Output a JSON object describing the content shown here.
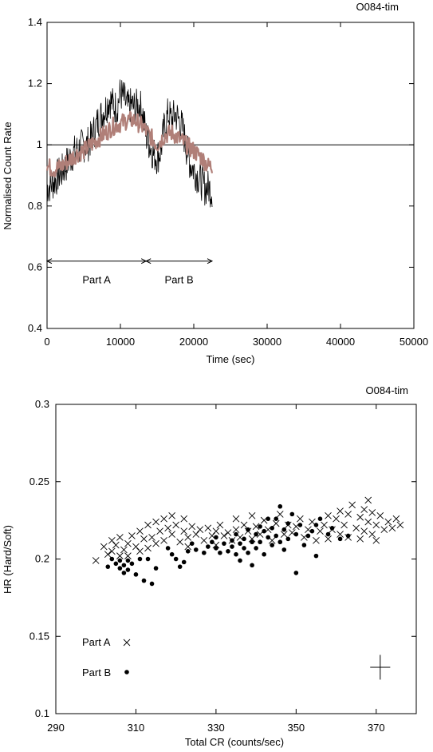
{
  "chart_data": [
    {
      "type": "line",
      "title": "O084-tim",
      "xlabel": "Time (sec)",
      "ylabel": "Normalised Count Rate",
      "xlim": [
        0,
        50000
      ],
      "ylim": [
        0.4,
        1.4
      ],
      "xticks": [
        "0",
        "10000",
        "20000",
        "30000",
        "40000",
        "50000"
      ],
      "yticks": [
        "0.4",
        "0.6",
        "0.8",
        "1",
        "1.2",
        "1.4"
      ],
      "reference_line": 1,
      "grid": false,
      "series": [
        {
          "color": "#000000",
          "x": [
            0,
            500,
            1000,
            1500,
            2000,
            2500,
            3000,
            3500,
            4000,
            4500,
            5000,
            5500,
            6000,
            6500,
            7000,
            7500,
            8000,
            8500,
            9000,
            9500,
            10000,
            10500,
            11000,
            11500,
            12000,
            12500,
            13000,
            13500,
            14000,
            14500,
            15000,
            15500,
            16000,
            16500,
            17000,
            17500,
            18000,
            18500,
            19000,
            19500,
            20000,
            20500,
            21000,
            21500,
            22000,
            22500
          ],
          "y": [
            0.86,
            0.87,
            0.88,
            0.9,
            0.91,
            0.93,
            0.95,
            0.97,
            0.98,
            0.99,
            1.0,
            1.0,
            1.02,
            1.05,
            1.08,
            1.1,
            1.12,
            1.15,
            1.13,
            1.12,
            1.17,
            1.15,
            1.12,
            1.13,
            1.12,
            1.13,
            1.11,
            1.03,
            1.0,
            0.97,
            0.96,
            0.98,
            1.06,
            1.1,
            1.08,
            1.1,
            1.08,
            1.05,
            0.99,
            0.94,
            0.92,
            0.9,
            0.88,
            0.86,
            0.86,
            0.85
          ],
          "band": 0.06
        },
        {
          "color": "#b07f78",
          "x": [
            0,
            1000,
            2000,
            3000,
            4000,
            5000,
            6000,
            7000,
            8000,
            9000,
            10000,
            11000,
            12000,
            13000,
            14000,
            15000,
            16000,
            17000,
            18000,
            19000,
            20000,
            21000,
            22000,
            22500
          ],
          "y": [
            0.93,
            0.92,
            0.93,
            0.95,
            0.97,
            0.98,
            1.0,
            1.02,
            1.04,
            1.06,
            1.07,
            1.08,
            1.08,
            1.06,
            1.03,
            1.0,
            1.03,
            1.04,
            1.02,
            1.0,
            0.98,
            0.96,
            0.93,
            0.93
          ],
          "band": 0.03
        }
      ],
      "annotations": [
        {
          "label": "Part A",
          "x_from": 0,
          "x_to": 13500,
          "y": 0.62
        },
        {
          "label": "Part B",
          "x_from": 13500,
          "x_to": 22500,
          "y": 0.62
        }
      ]
    },
    {
      "type": "scatter",
      "title": "O084-tim",
      "xlabel": "Total CR (counts/sec)",
      "ylabel": "HR (Hard/Soft)",
      "xlim": [
        290,
        380
      ],
      "ylim": [
        0.1,
        0.3
      ],
      "xticks": [
        "290",
        "310",
        "330",
        "350",
        "370"
      ],
      "yticks": [
        "0.1",
        "0.15",
        "0.2",
        "0.25",
        "0.3"
      ],
      "legend": "bottom-left",
      "error_bar": {
        "x": 371,
        "y": 0.13,
        "dx": 2.5,
        "dy": 0.008
      },
      "series": [
        {
          "name": "Part A",
          "marker": "cross",
          "points": [
            [
              300,
              0.199
            ],
            [
              302,
              0.208
            ],
            [
              303,
              0.203
            ],
            [
              304,
              0.212
            ],
            [
              304,
              0.205
            ],
            [
              305,
              0.209
            ],
            [
              306,
              0.202
            ],
            [
              306,
              0.214
            ],
            [
              307,
              0.206
            ],
            [
              308,
              0.21
            ],
            [
              308,
              0.202
            ],
            [
              309,
              0.215
            ],
            [
              310,
              0.208
            ],
            [
              311,
              0.218
            ],
            [
              311,
              0.205
            ],
            [
              312,
              0.213
            ],
            [
              313,
              0.207
            ],
            [
              313,
              0.222
            ],
            [
              314,
              0.214
            ],
            [
              315,
              0.224
            ],
            [
              315,
              0.21
            ],
            [
              316,
              0.218
            ],
            [
              317,
              0.212
            ],
            [
              317,
              0.226
            ],
            [
              318,
              0.22
            ],
            [
              319,
              0.228
            ],
            [
              319,
              0.216
            ],
            [
              320,
              0.222
            ],
            [
              321,
              0.211
            ],
            [
              322,
              0.226
            ],
            [
              322,
              0.218
            ],
            [
              323,
              0.214
            ],
            [
              323,
              0.208
            ],
            [
              324,
              0.221
            ],
            [
              325,
              0.216
            ],
            [
              326,
              0.219
            ],
            [
              327,
              0.212
            ],
            [
              328,
              0.22
            ],
            [
              329,
              0.215
            ],
            [
              330,
              0.218
            ],
            [
              330,
              0.209
            ],
            [
              331,
              0.222
            ],
            [
              332,
              0.215
            ],
            [
              333,
              0.217
            ],
            [
              334,
              0.212
            ],
            [
              335,
              0.219
            ],
            [
              335,
              0.226
            ],
            [
              336,
              0.214
            ],
            [
              337,
              0.222
            ],
            [
              338,
              0.218
            ],
            [
              339,
              0.228
            ],
            [
              339,
              0.213
            ],
            [
              340,
              0.221
            ],
            [
              341,
              0.216
            ],
            [
              342,
              0.225
            ],
            [
              343,
              0.219
            ],
            [
              344,
              0.212
            ],
            [
              345,
              0.223
            ],
            [
              346,
              0.229
            ],
            [
              347,
              0.216
            ],
            [
              348,
              0.222
            ],
            [
              349,
              0.217
            ],
            [
              350,
              0.221
            ],
            [
              351,
              0.226
            ],
            [
              352,
              0.214
            ],
            [
              353,
              0.219
            ],
            [
              354,
              0.224
            ],
            [
              355,
              0.212
            ],
            [
              356,
              0.218
            ],
            [
              357,
              0.222
            ],
            [
              358,
              0.228
            ],
            [
              358,
              0.213
            ],
            [
              359,
              0.219
            ],
            [
              360,
              0.226
            ],
            [
              361,
              0.231
            ],
            [
              361,
              0.216
            ],
            [
              362,
              0.222
            ],
            [
              363,
              0.229
            ],
            [
              363,
              0.214
            ],
            [
              364,
              0.235
            ],
            [
              365,
              0.22
            ],
            [
              366,
              0.227
            ],
            [
              366,
              0.213
            ],
            [
              367,
              0.232
            ],
            [
              367,
              0.218
            ],
            [
              368,
              0.224
            ],
            [
              368,
              0.238
            ],
            [
              369,
              0.216
            ],
            [
              369,
              0.23
            ],
            [
              370,
              0.222
            ],
            [
              370,
              0.212
            ],
            [
              371,
              0.228
            ],
            [
              372,
              0.219
            ],
            [
              373,
              0.224
            ],
            [
              374,
              0.22
            ],
            [
              375,
              0.226
            ],
            [
              376,
              0.222
            ]
          ]
        },
        {
          "name": "Part B",
          "marker": "dot",
          "points": [
            [
              303,
              0.195
            ],
            [
              304,
              0.2
            ],
            [
              305,
              0.197
            ],
            [
              306,
              0.194
            ],
            [
              306,
              0.199
            ],
            [
              307,
              0.196
            ],
            [
              307,
              0.191
            ],
            [
              308,
              0.199
            ],
            [
              308,
              0.193
            ],
            [
              309,
              0.197
            ],
            [
              310,
              0.19
            ],
            [
              311,
              0.2
            ],
            [
              312,
              0.186
            ],
            [
              313,
              0.2
            ],
            [
              314,
              0.184
            ],
            [
              315,
              0.194
            ],
            [
              318,
              0.207
            ],
            [
              319,
              0.203
            ],
            [
              320,
              0.2
            ],
            [
              321,
              0.195
            ],
            [
              322,
              0.198
            ],
            [
              323,
              0.205
            ],
            [
              324,
              0.21
            ],
            [
              325,
              0.206
            ],
            [
              327,
              0.204
            ],
            [
              328,
              0.208
            ],
            [
              329,
              0.211
            ],
            [
              330,
              0.207
            ],
            [
              330,
              0.214
            ],
            [
              331,
              0.204
            ],
            [
              332,
              0.21
            ],
            [
              333,
              0.205
            ],
            [
              334,
              0.212
            ],
            [
              334,
              0.208
            ],
            [
              335,
              0.203
            ],
            [
              335,
              0.216
            ],
            [
              336,
              0.21
            ],
            [
              336,
              0.199
            ],
            [
              337,
              0.213
            ],
            [
              337,
              0.207
            ],
            [
              338,
              0.219
            ],
            [
              338,
              0.204
            ],
            [
              339,
              0.211
            ],
            [
              339,
              0.196
            ],
            [
              340,
              0.216
            ],
            [
              340,
              0.207
            ],
            [
              341,
              0.221
            ],
            [
              341,
              0.211
            ],
            [
              342,
              0.218
            ],
            [
              342,
              0.203
            ],
            [
              343,
              0.214
            ],
            [
              343,
              0.226
            ],
            [
              344,
              0.209
            ],
            [
              344,
              0.22
            ],
            [
              345,
              0.215
            ],
            [
              345,
              0.226
            ],
            [
              346,
              0.234
            ],
            [
              346,
              0.211
            ],
            [
              347,
              0.219
            ],
            [
              347,
              0.206
            ],
            [
              348,
              0.223
            ],
            [
              348,
              0.213
            ],
            [
              349,
              0.229
            ],
            [
              350,
              0.191
            ],
            [
              350,
              0.216
            ],
            [
              351,
              0.222
            ],
            [
              352,
              0.209
            ],
            [
              353,
              0.215
            ],
            [
              354,
              0.218
            ],
            [
              355,
              0.202
            ],
            [
              355,
              0.222
            ],
            [
              356,
              0.226
            ],
            [
              358,
              0.216
            ],
            [
              359,
              0.22
            ],
            [
              361,
              0.213
            ],
            [
              363,
              0.215
            ]
          ]
        }
      ]
    }
  ]
}
